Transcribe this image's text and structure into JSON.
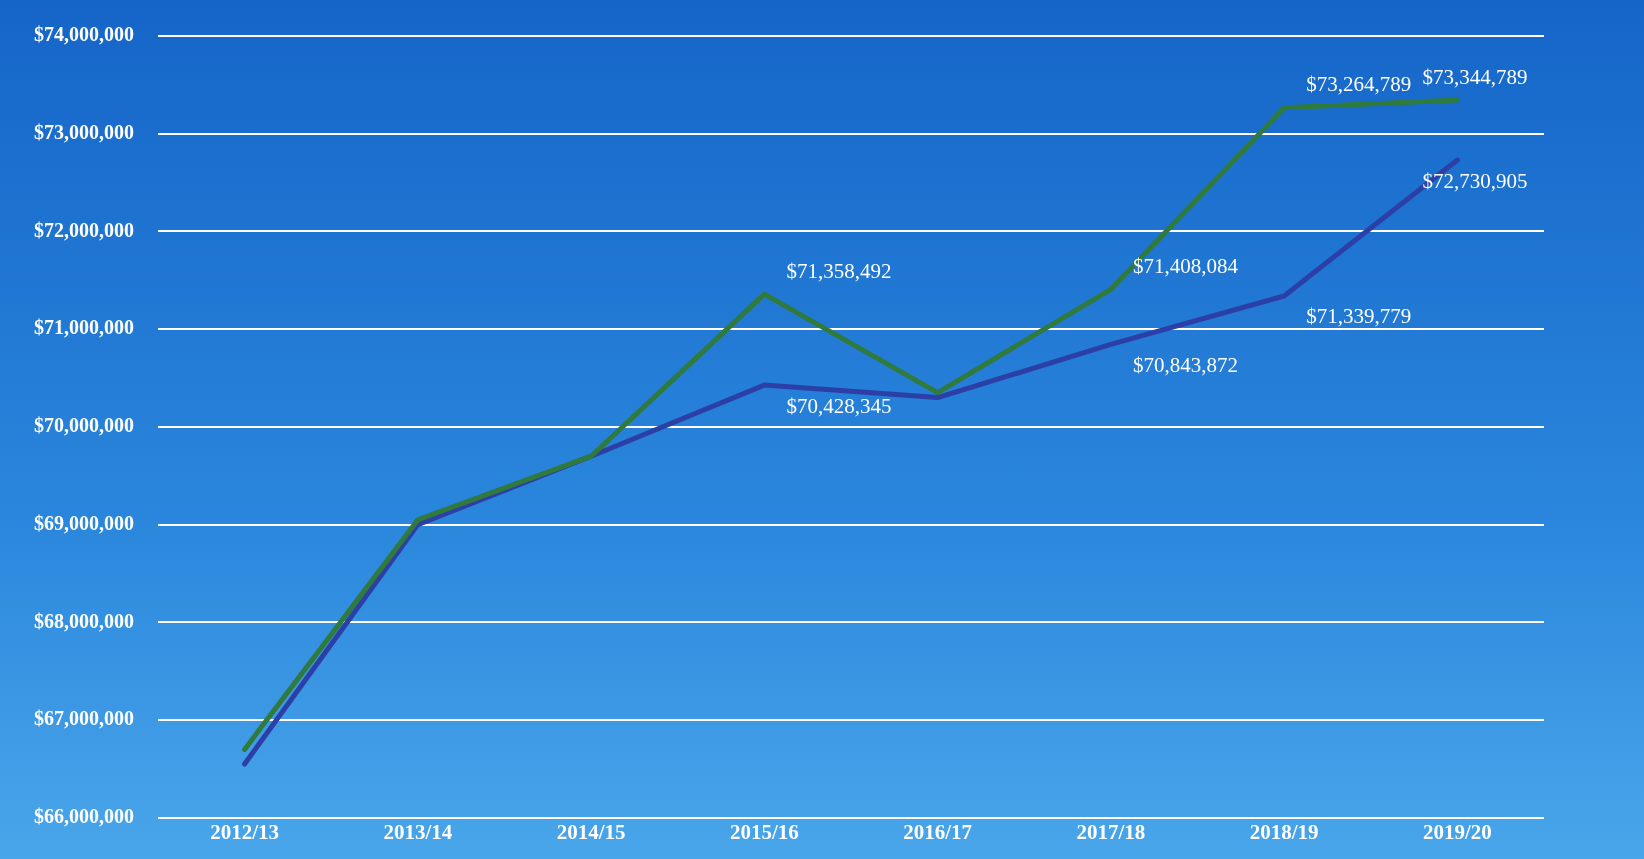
{
  "chart_data": {
    "type": "line",
    "categories": [
      "2012/13",
      "2013/14",
      "2014/15",
      "2015/16",
      "2016/17",
      "2017/18",
      "2018/19",
      "2019/20"
    ],
    "series": [
      {
        "color": "#2f7a3c",
        "values": [
          66700000,
          69050000,
          69700000,
          71358492,
          70350000,
          71408084,
          73264789,
          73344789
        ],
        "value_labels": [
          null,
          null,
          null,
          "$71,358,492",
          null,
          "$71,408,084",
          "$73,264,789",
          "$73,344,789"
        ]
      },
      {
        "color": "#2c3fa6",
        "values": [
          66550000,
          69000000,
          69700000,
          70428345,
          70300000,
          70843872,
          71339779,
          72730905
        ],
        "value_labels": [
          null,
          null,
          null,
          "$70,428,345",
          null,
          "$70,843,872",
          "$71,339,779",
          "$72,730,905"
        ]
      }
    ],
    "ylim": [
      66000000,
      74000000
    ],
    "yticks": [
      {
        "value": 66000000,
        "label": "$66,000,000"
      },
      {
        "value": 67000000,
        "label": "$67,000,000"
      },
      {
        "value": 68000000,
        "label": "$68,000,000"
      },
      {
        "value": 69000000,
        "label": "$69,000,000"
      },
      {
        "value": 70000000,
        "label": "$70,000,000"
      },
      {
        "value": 71000000,
        "label": "$71,000,000"
      },
      {
        "value": 72000000,
        "label": "$72,000,000"
      },
      {
        "value": 73000000,
        "label": "$73,000,000"
      },
      {
        "value": 74000000,
        "label": "$74,000,000"
      }
    ],
    "grid": "y",
    "marker": "none",
    "line_style": "solid"
  }
}
